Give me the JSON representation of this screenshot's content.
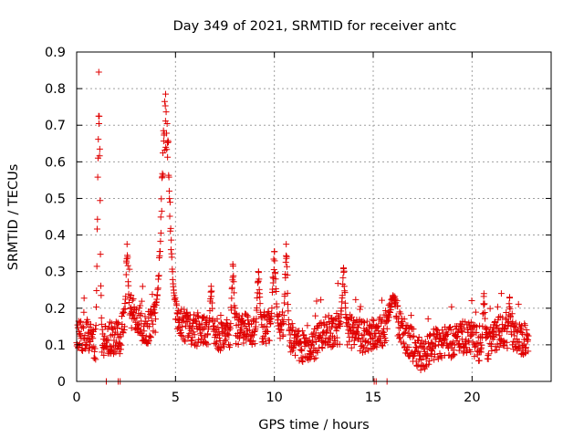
{
  "chart_data": {
    "type": "scatter",
    "title": "Day 349 of 2021, SRMTID for receiver antc",
    "xlabel": "GPS time / hours",
    "ylabel": "SRMTID / TECUs",
    "xlim": [
      0,
      24
    ],
    "ylim": [
      0,
      0.9
    ],
    "xticks": [
      0,
      5,
      10,
      15,
      20
    ],
    "xtick_labels": [
      "0",
      "5",
      "10",
      "15",
      "20"
    ],
    "yticks": [
      0,
      0.1,
      0.2,
      0.3,
      0.4,
      0.5,
      0.6,
      0.7,
      0.8,
      0.9
    ],
    "ytick_labels": [
      "0",
      "0.1",
      "0.2",
      "0.3",
      "0.4",
      "0.5",
      "0.6",
      "0.7",
      "0.8",
      "0.9"
    ],
    "grid": true,
    "marker": "+",
    "color": "#e00000",
    "x_extent_hours": [
      0.0,
      22.85
    ],
    "series": [
      {
        "name": "antc",
        "description_values": "dense 30-s samples, typical level 0.05-0.2 TECU",
        "baseline": [
          [
            0.0,
            0.12
          ],
          [
            0.5,
            0.13
          ],
          [
            1.0,
            0.1
          ],
          [
            1.3,
            0.11
          ],
          [
            1.8,
            0.12
          ],
          [
            2.2,
            0.12
          ],
          [
            2.6,
            0.2
          ],
          [
            3.0,
            0.18
          ],
          [
            3.5,
            0.14
          ],
          [
            4.0,
            0.18
          ],
          [
            4.6,
            0.18
          ],
          [
            5.0,
            0.19
          ],
          [
            5.5,
            0.15
          ],
          [
            6.0,
            0.14
          ],
          [
            6.5,
            0.14
          ],
          [
            7.0,
            0.13
          ],
          [
            7.5,
            0.12
          ],
          [
            8.0,
            0.14
          ],
          [
            8.5,
            0.14
          ],
          [
            9.0,
            0.13
          ],
          [
            9.5,
            0.15
          ],
          [
            10.0,
            0.14
          ],
          [
            10.5,
            0.14
          ],
          [
            11.0,
            0.11
          ],
          [
            11.5,
            0.09
          ],
          [
            12.0,
            0.1
          ],
          [
            12.5,
            0.13
          ],
          [
            13.0,
            0.14
          ],
          [
            13.5,
            0.15
          ],
          [
            14.0,
            0.13
          ],
          [
            14.5,
            0.12
          ],
          [
            15.0,
            0.13
          ],
          [
            15.5,
            0.14
          ],
          [
            16.0,
            0.19
          ],
          [
            16.5,
            0.13
          ],
          [
            17.0,
            0.1
          ],
          [
            17.5,
            0.07
          ],
          [
            18.0,
            0.1
          ],
          [
            18.5,
            0.11
          ],
          [
            19.0,
            0.11
          ],
          [
            19.5,
            0.12
          ],
          [
            20.0,
            0.12
          ],
          [
            20.5,
            0.08
          ],
          [
            21.0,
            0.12
          ],
          [
            21.5,
            0.14
          ],
          [
            22.0,
            0.12
          ],
          [
            22.5,
            0.11
          ],
          [
            22.85,
            0.12
          ]
        ],
        "spikes": [
          {
            "x": 1.12,
            "peak": 0.845,
            "width": 0.09
          },
          {
            "x": 4.5,
            "peak": 0.785,
            "width": 0.28
          },
          {
            "x": 2.55,
            "peak": 0.375,
            "width": 0.07
          },
          {
            "x": 10.6,
            "peak": 0.375,
            "width": 0.09
          },
          {
            "x": 10.0,
            "peak": 0.355,
            "width": 0.12
          },
          {
            "x": 13.5,
            "peak": 0.31,
            "width": 0.1
          },
          {
            "x": 7.9,
            "peak": 0.32,
            "width": 0.08
          },
          {
            "x": 9.2,
            "peak": 0.3,
            "width": 0.1
          },
          {
            "x": 6.8,
            "peak": 0.26,
            "width": 0.08
          },
          {
            "x": 16.0,
            "peak": 0.235,
            "width": 0.12
          },
          {
            "x": 20.6,
            "peak": 0.24,
            "width": 0.08
          },
          {
            "x": 21.9,
            "peak": 0.23,
            "width": 0.06
          }
        ],
        "zero_points": [
          1.5,
          2.1,
          2.2,
          15.05,
          15.15,
          15.7
        ]
      }
    ]
  }
}
